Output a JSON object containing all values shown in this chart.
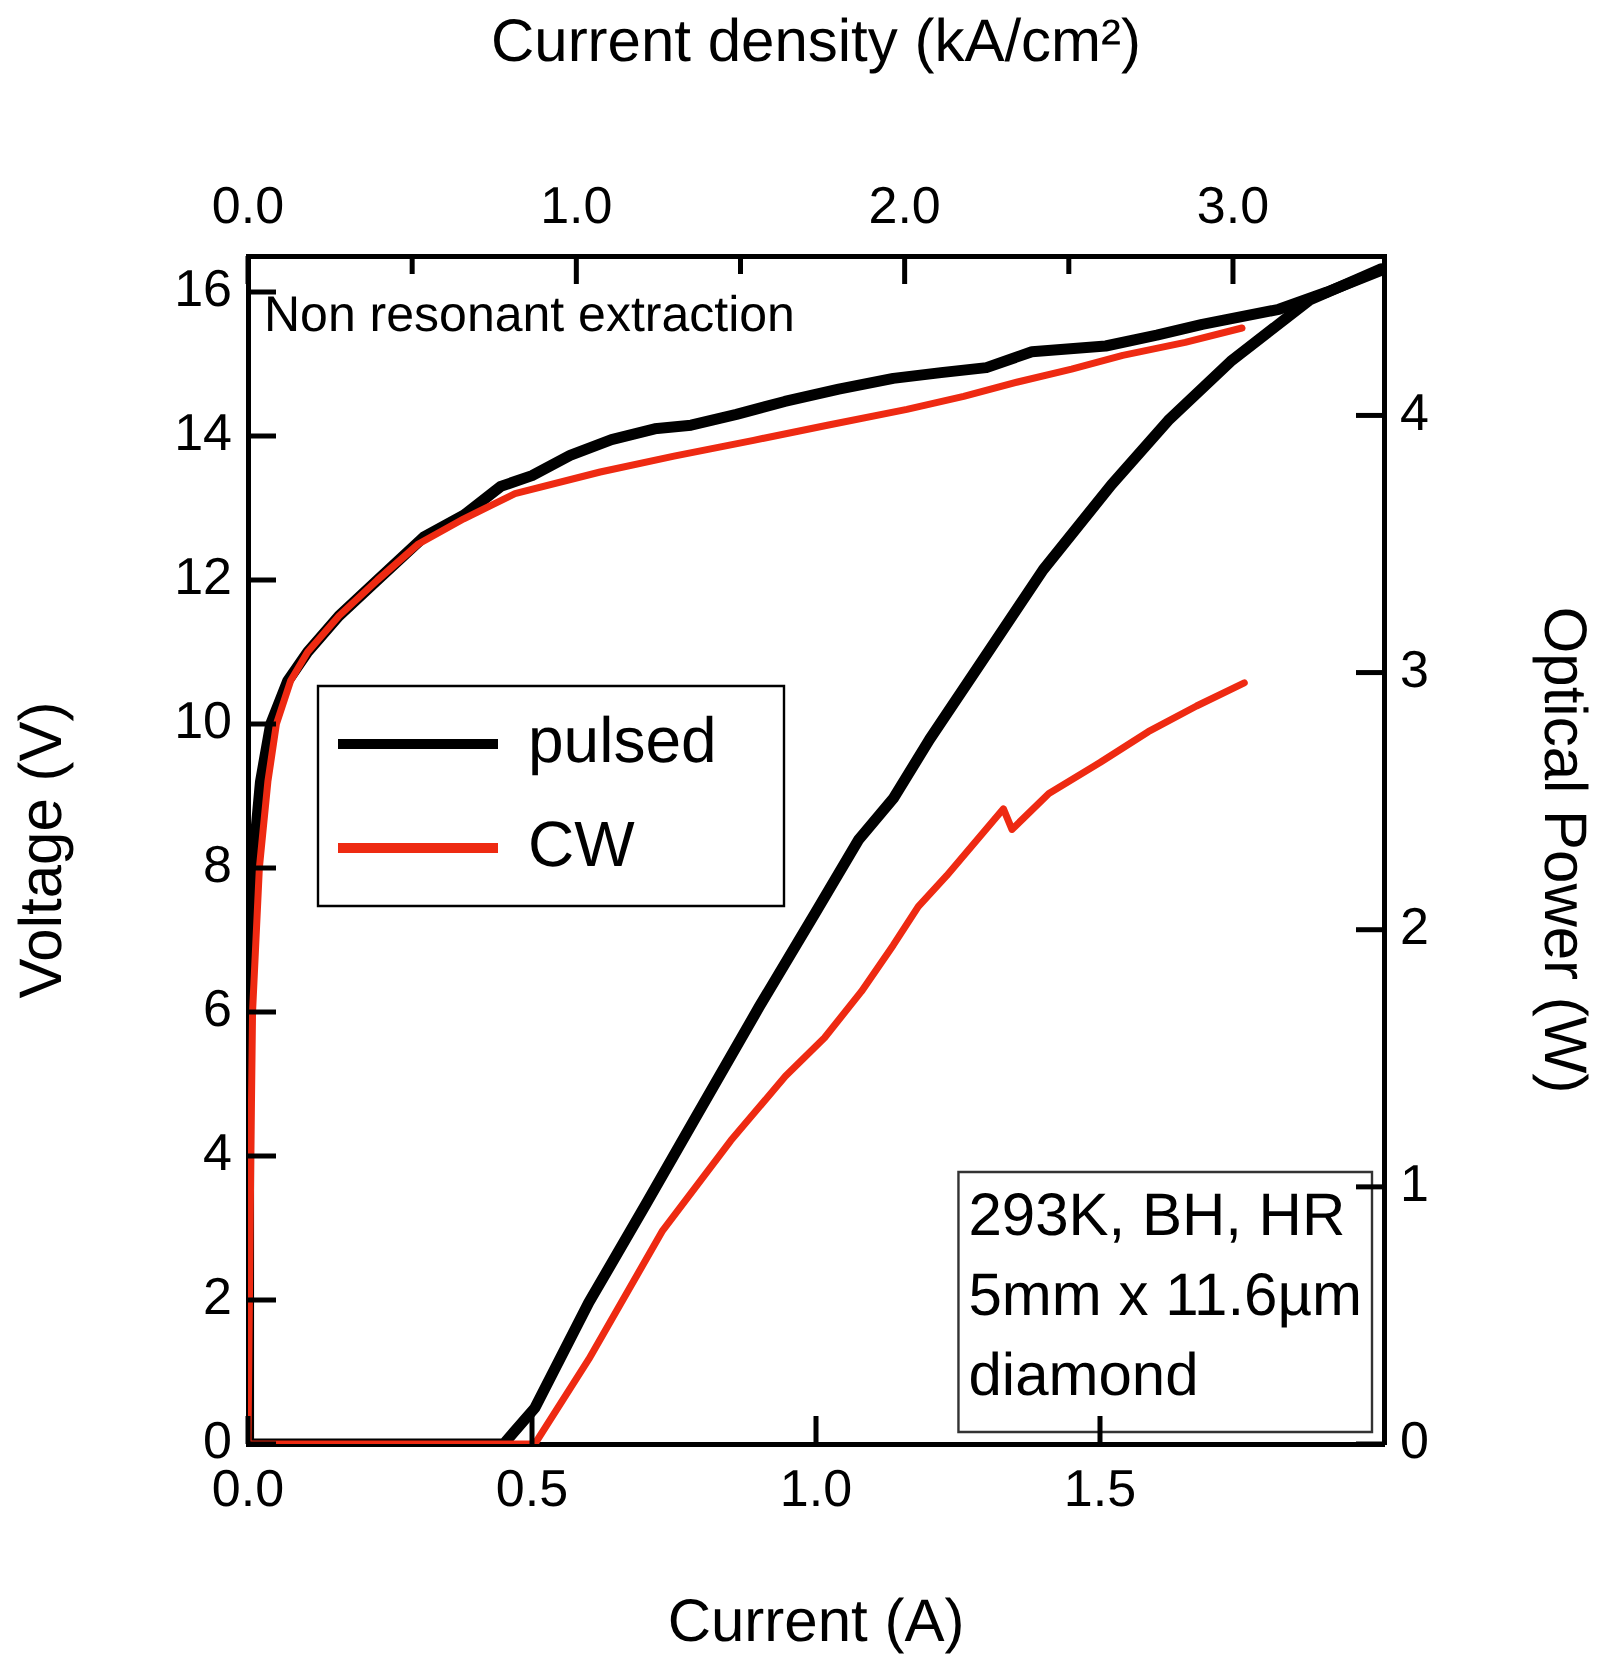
{
  "chart_data": {
    "type": "line",
    "xlabel": "Current (A)",
    "ylabel": "Voltage (V)",
    "y2label": "Optical Power (W)",
    "x2label": "Current density (kA/cm²)",
    "xlim": [
      0,
      2.0
    ],
    "xticks": [
      {
        "value": 0,
        "label": "0.0"
      },
      {
        "value": 0.5,
        "label": "0.5"
      },
      {
        "value": 1,
        "label": "1.0"
      },
      {
        "value": 1.5,
        "label": "1.5"
      }
    ],
    "x2lim": [
      0,
      3.46
    ],
    "x2ticks": [
      {
        "value": 0,
        "label": "0.0"
      },
      {
        "value": 0.5,
        "label": null
      },
      {
        "value": 1,
        "label": "1.0"
      },
      {
        "value": 1.5,
        "label": null
      },
      {
        "value": 2,
        "label": "2.0"
      },
      {
        "value": 2.5,
        "label": null
      },
      {
        "value": 3,
        "label": "3.0"
      }
    ],
    "ylim": [
      0,
      16.5
    ],
    "yticks": [
      0,
      2,
      4,
      6,
      8,
      10,
      12,
      14,
      16
    ],
    "y2lim": [
      0,
      4.62
    ],
    "y2ticks": [
      0,
      1,
      2,
      3,
      4
    ],
    "grid": false,
    "legend": "center left",
    "marker": "none",
    "line_style": "solid",
    "annotations": [
      "Non resonant extraction",
      "293K, BH, HR\n5mm x 11.6µm\ndiamond"
    ],
    "series": [
      {
        "name": "pulsed",
        "color": "#000000",
        "axis": "y",
        "x": [
          0,
          0.001,
          0.008,
          0.022,
          0.04,
          0.07,
          0.105,
          0.16,
          0.228,
          0.31,
          0.38,
          0.445,
          0.5,
          0.567,
          0.64,
          0.716,
          0.78,
          0.86,
          0.945,
          1.04,
          1.136,
          1.22,
          1.3,
          1.38,
          1.51,
          1.6,
          1.68,
          1.815,
          1.9,
          1.995
        ],
        "values": [
          0,
          6,
          8,
          9.2,
          10,
          10.6,
          11,
          11.5,
          12,
          12.6,
          12.9,
          13.3,
          13.45,
          13.73,
          13.95,
          14.1,
          14.15,
          14.3,
          14.48,
          14.65,
          14.8,
          14.88,
          14.95,
          15.17,
          15.25,
          15.4,
          15.55,
          15.76,
          16.0,
          16.3
        ]
      },
      {
        "name": "CW",
        "color": "#ee2a12",
        "axis": "y",
        "x": [
          0,
          0.005,
          0.008,
          0.02,
          0.035,
          0.05,
          0.075,
          0.105,
          0.16,
          0.228,
          0.3,
          0.38,
          0.47,
          0.62,
          0.75,
          0.89,
          1.02,
          1.16,
          1.26,
          1.355,
          1.45,
          1.54,
          1.65,
          1.75
        ],
        "values": [
          0,
          4,
          6,
          8,
          9.2,
          10,
          10.6,
          11,
          11.5,
          12,
          12.5,
          12.85,
          13.2,
          13.5,
          13.72,
          13.94,
          14.15,
          14.37,
          14.55,
          14.75,
          14.93,
          15.12,
          15.3,
          15.5
        ]
      },
      {
        "color": "#000000",
        "axis": "y2",
        "x": [
          0,
          0.2,
          0.45,
          0.505,
          0.6,
          0.7,
          0.783,
          0.9,
          1.0,
          1.075,
          1.136,
          1.2,
          1.3,
          1.4,
          1.52,
          1.62,
          1.73,
          1.87,
          1.995
        ],
        "values": [
          0,
          0,
          0,
          0.14,
          0.55,
          0.93,
          1.25,
          1.7,
          2.07,
          2.35,
          2.51,
          2.74,
          3.07,
          3.4,
          3.73,
          3.98,
          4.21,
          4.45,
          4.57
        ]
      },
      {
        "color": "#ee2a12",
        "axis": "y2",
        "x": [
          0,
          0.2,
          0.505,
          0.6,
          0.73,
          0.85,
          0.946,
          1.015,
          1.08,
          1.136,
          1.18,
          1.23,
          1.33,
          1.345,
          1.41,
          1.5,
          1.585,
          1.67,
          1.754
        ],
        "values": [
          0,
          0,
          0,
          0.33,
          0.83,
          1.18,
          1.43,
          1.58,
          1.76,
          1.94,
          2.09,
          2.21,
          2.47,
          2.39,
          2.53,
          2.65,
          2.77,
          2.87,
          2.96
        ]
      }
    ]
  }
}
